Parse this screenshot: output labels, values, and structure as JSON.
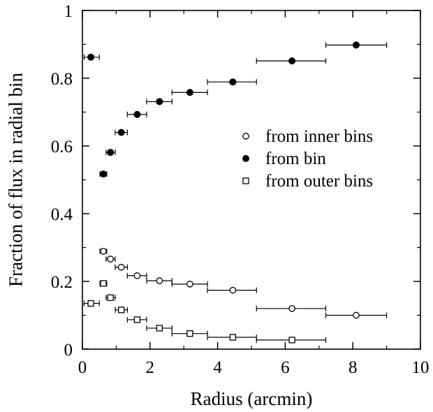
{
  "chart_data": {
    "type": "scatter",
    "title": "",
    "xlabel": "Radius (arcmin)",
    "ylabel": "Fraction of flux in radial bin",
    "xlim": [
      0,
      10
    ],
    "ylim": [
      0,
      1
    ],
    "xticks": [
      0,
      2,
      4,
      6,
      8,
      10
    ],
    "yticks": [
      0,
      0.2,
      0.4,
      0.6,
      0.8,
      1
    ],
    "xtick_labels": [
      "0",
      "2",
      "4",
      "6",
      "8",
      "10"
    ],
    "ytick_labels": [
      "0",
      "0.2",
      "0.4",
      "0.6",
      "0.8",
      "1"
    ],
    "grid": false,
    "legend_position": "center-right",
    "series": [
      {
        "name": "from inner bins",
        "marker": "open-circle",
        "points": [
          {
            "x": 0.62,
            "y": 0.289,
            "xerr": [
              0.52,
              0.72
            ]
          },
          {
            "x": 0.83,
            "y": 0.266,
            "xerr": [
              0.7,
              0.97
            ]
          },
          {
            "x": 1.15,
            "y": 0.242,
            "xerr": [
              0.97,
              1.33
            ]
          },
          {
            "x": 1.62,
            "y": 0.217,
            "xerr": [
              1.33,
              1.9
            ]
          },
          {
            "x": 2.28,
            "y": 0.202,
            "xerr": [
              1.9,
              2.65
            ]
          },
          {
            "x": 3.18,
            "y": 0.192,
            "xerr": [
              2.65,
              3.7
            ]
          },
          {
            "x": 4.45,
            "y": 0.174,
            "xerr": [
              3.7,
              5.15
            ]
          },
          {
            "x": 6.2,
            "y": 0.12,
            "xerr": [
              5.15,
              7.2
            ]
          },
          {
            "x": 8.1,
            "y": 0.1,
            "xerr": [
              7.2,
              9.0
            ]
          }
        ]
      },
      {
        "name": "from bin",
        "marker": "filled-circle",
        "points": [
          {
            "x": 0.25,
            "y": 0.862,
            "xerr": [
              0.05,
              0.5
            ]
          },
          {
            "x": 0.62,
            "y": 0.517,
            "xerr": [
              0.52,
              0.72
            ]
          },
          {
            "x": 0.83,
            "y": 0.581,
            "xerr": [
              0.7,
              0.97
            ]
          },
          {
            "x": 1.15,
            "y": 0.64,
            "xerr": [
              0.97,
              1.33
            ]
          },
          {
            "x": 1.62,
            "y": 0.693,
            "xerr": [
              1.33,
              1.9
            ]
          },
          {
            "x": 2.28,
            "y": 0.731,
            "xerr": [
              1.9,
              2.65
            ]
          },
          {
            "x": 3.18,
            "y": 0.758,
            "xerr": [
              2.65,
              3.7
            ]
          },
          {
            "x": 4.45,
            "y": 0.789,
            "xerr": [
              3.7,
              5.15
            ]
          },
          {
            "x": 6.2,
            "y": 0.851,
            "xerr": [
              5.15,
              7.2
            ]
          },
          {
            "x": 8.1,
            "y": 0.898,
            "xerr": [
              7.2,
              9.0
            ]
          }
        ]
      },
      {
        "name": "from outer bins",
        "marker": "open-square",
        "points": [
          {
            "x": 0.25,
            "y": 0.135,
            "xerr": [
              0.05,
              0.5
            ]
          },
          {
            "x": 0.62,
            "y": 0.194,
            "xerr": [
              0.52,
              0.72
            ]
          },
          {
            "x": 0.83,
            "y": 0.152,
            "xerr": [
              0.7,
              0.97
            ]
          },
          {
            "x": 1.15,
            "y": 0.116,
            "xerr": [
              0.97,
              1.33
            ]
          },
          {
            "x": 1.62,
            "y": 0.087,
            "xerr": [
              1.33,
              1.9
            ]
          },
          {
            "x": 2.28,
            "y": 0.062,
            "xerr": [
              1.9,
              2.65
            ]
          },
          {
            "x": 3.18,
            "y": 0.046,
            "xerr": [
              2.65,
              3.7
            ]
          },
          {
            "x": 4.45,
            "y": 0.035,
            "xerr": [
              3.7,
              5.15
            ]
          },
          {
            "x": 6.2,
            "y": 0.027,
            "xerr": [
              5.15,
              7.2
            ]
          }
        ]
      }
    ]
  }
}
